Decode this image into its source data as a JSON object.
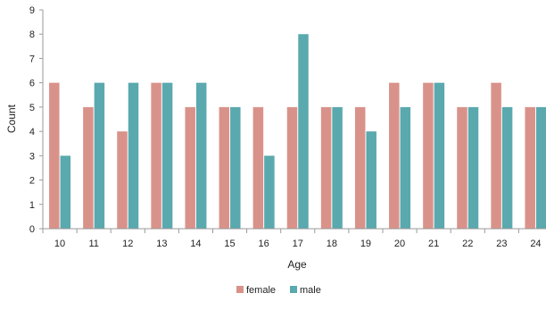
{
  "chart_data": {
    "type": "bar",
    "title": "",
    "xlabel": "Age",
    "ylabel": "Count",
    "ylim": [
      0,
      9
    ],
    "yticks": [
      0,
      1,
      2,
      3,
      4,
      5,
      6,
      7,
      8,
      9
    ],
    "grid": false,
    "legend_position": "bottom-center",
    "categories": [
      "10",
      "11",
      "12",
      "13",
      "14",
      "15",
      "16",
      "17",
      "18",
      "19",
      "20",
      "21",
      "22",
      "23",
      "24"
    ],
    "series": [
      {
        "name": "female",
        "color": "#d9928a",
        "values": [
          6,
          5,
          4,
          6,
          5,
          5,
          5,
          5,
          5,
          5,
          6,
          6,
          5,
          6,
          5
        ]
      },
      {
        "name": "male",
        "color": "#5aa9ae",
        "values": [
          3,
          6,
          6,
          6,
          6,
          5,
          3,
          8,
          5,
          4,
          5,
          6,
          5,
          5,
          5
        ]
      }
    ]
  }
}
